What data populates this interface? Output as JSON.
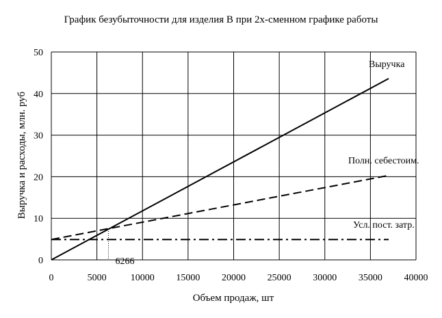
{
  "chart_data": {
    "type": "line",
    "title": "График безубыточности для изделия В при 2х-сменном графике работы",
    "xlabel": "Объем продаж, шт",
    "ylabel": "Выручка и расходы, млн. руб",
    "xlim": [
      0,
      40000
    ],
    "ylim": [
      0,
      50
    ],
    "xticks": [
      0,
      5000,
      10000,
      15000,
      20000,
      25000,
      30000,
      35000,
      40000
    ],
    "yticks": [
      0,
      10,
      20,
      30,
      40,
      50
    ],
    "grid": true,
    "legend": "none; series labelled directly at line ends",
    "series": [
      {
        "name": "Выручка",
        "style": "solid",
        "color": "#000000",
        "x": [
          0,
          37000
        ],
        "y": [
          0,
          43.6
        ]
      },
      {
        "name": "Полн. себестоим.",
        "style": "dashed",
        "color": "#000000",
        "x": [
          0,
          37000
        ],
        "y": [
          4.9,
          20.3
        ]
      },
      {
        "name": "Усл. пост. затр.",
        "style": "dash-dot",
        "color": "#000000",
        "x": [
          0,
          37000
        ],
        "y": [
          4.9,
          4.9
        ]
      }
    ],
    "annotations": [
      {
        "text": "6266",
        "x": 6266,
        "y": 7.4,
        "style": "dotted drop line to x-axis"
      }
    ]
  }
}
